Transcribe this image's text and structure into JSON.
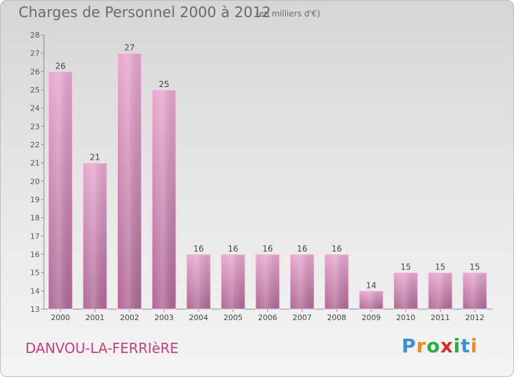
{
  "header": {
    "title": "Charges de Personnel 2000 à 2012",
    "unit_note": "(en milliers d'€)"
  },
  "footer": {
    "commune": "DANVOU-LA-FERRIèRE",
    "logo": {
      "letters": [
        "P",
        "r",
        "o",
        "x",
        "i",
        "t",
        "i"
      ],
      "colors": [
        "#3a8fd8",
        "#f08a1a",
        "#2fa84f",
        "#d62b2b",
        "#2fa84f",
        "#3a8fd8",
        "#f08a1a"
      ]
    }
  },
  "chart_data": {
    "type": "bar",
    "title": "Charges de Personnel 2000 à 2012",
    "subtitle": "(en milliers d'€)",
    "xlabel": "",
    "ylabel": "",
    "categories": [
      "2000",
      "2001",
      "2002",
      "2003",
      "2004",
      "2005",
      "2006",
      "2007",
      "2008",
      "2009",
      "2010",
      "2011",
      "2012"
    ],
    "values": [
      26,
      21,
      27,
      25,
      16,
      16,
      16,
      16,
      16,
      14,
      15,
      15,
      15
    ],
    "ylim": [
      13,
      28
    ],
    "yticks": [
      13,
      14,
      15,
      16,
      17,
      18,
      19,
      20,
      21,
      22,
      23,
      24,
      25,
      26,
      27,
      28
    ],
    "grid": false,
    "legend": "none",
    "bar_color": "#c47aa8",
    "data_labels": true
  }
}
